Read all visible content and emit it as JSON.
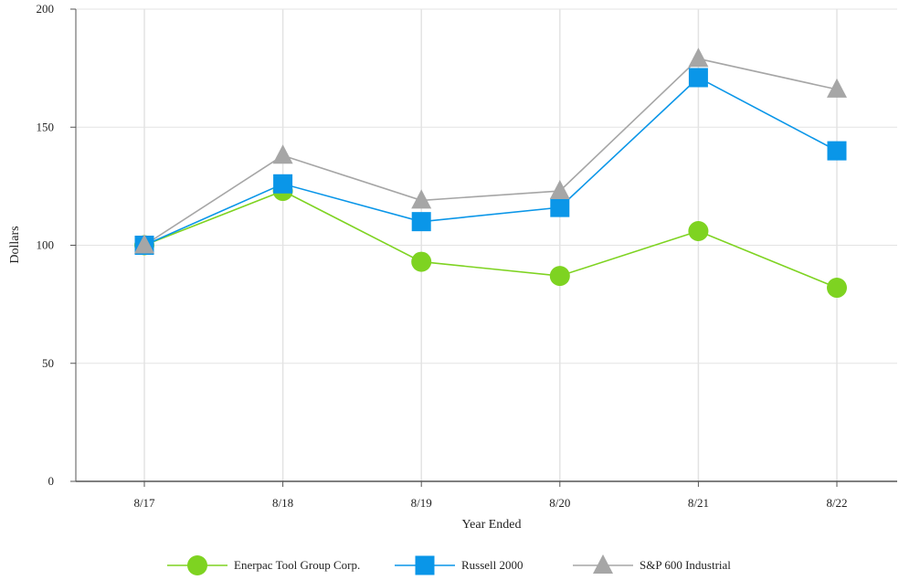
{
  "chart_data": {
    "type": "line",
    "title": "",
    "xlabel": "Year Ended",
    "ylabel": "Dollars",
    "categories": [
      "8/17",
      "8/18",
      "8/19",
      "8/20",
      "8/21",
      "8/22"
    ],
    "ylim": [
      0,
      200
    ],
    "yticks": [
      0,
      50,
      100,
      150,
      200
    ],
    "grid": true,
    "legend_position": "bottom",
    "series": [
      {
        "name": "Enerpac Tool Group Corp.",
        "values": [
          100,
          123,
          93,
          87,
          106,
          82
        ],
        "color": "#7ed321",
        "marker": "circle"
      },
      {
        "name": "Russell 2000",
        "values": [
          100,
          126,
          110,
          116,
          171,
          140
        ],
        "color": "#0a96e8",
        "marker": "square"
      },
      {
        "name": "S&P 600 Industrial",
        "values": [
          100,
          138,
          119,
          123,
          179,
          166
        ],
        "color": "#a6a6a6",
        "marker": "triangle"
      }
    ]
  }
}
